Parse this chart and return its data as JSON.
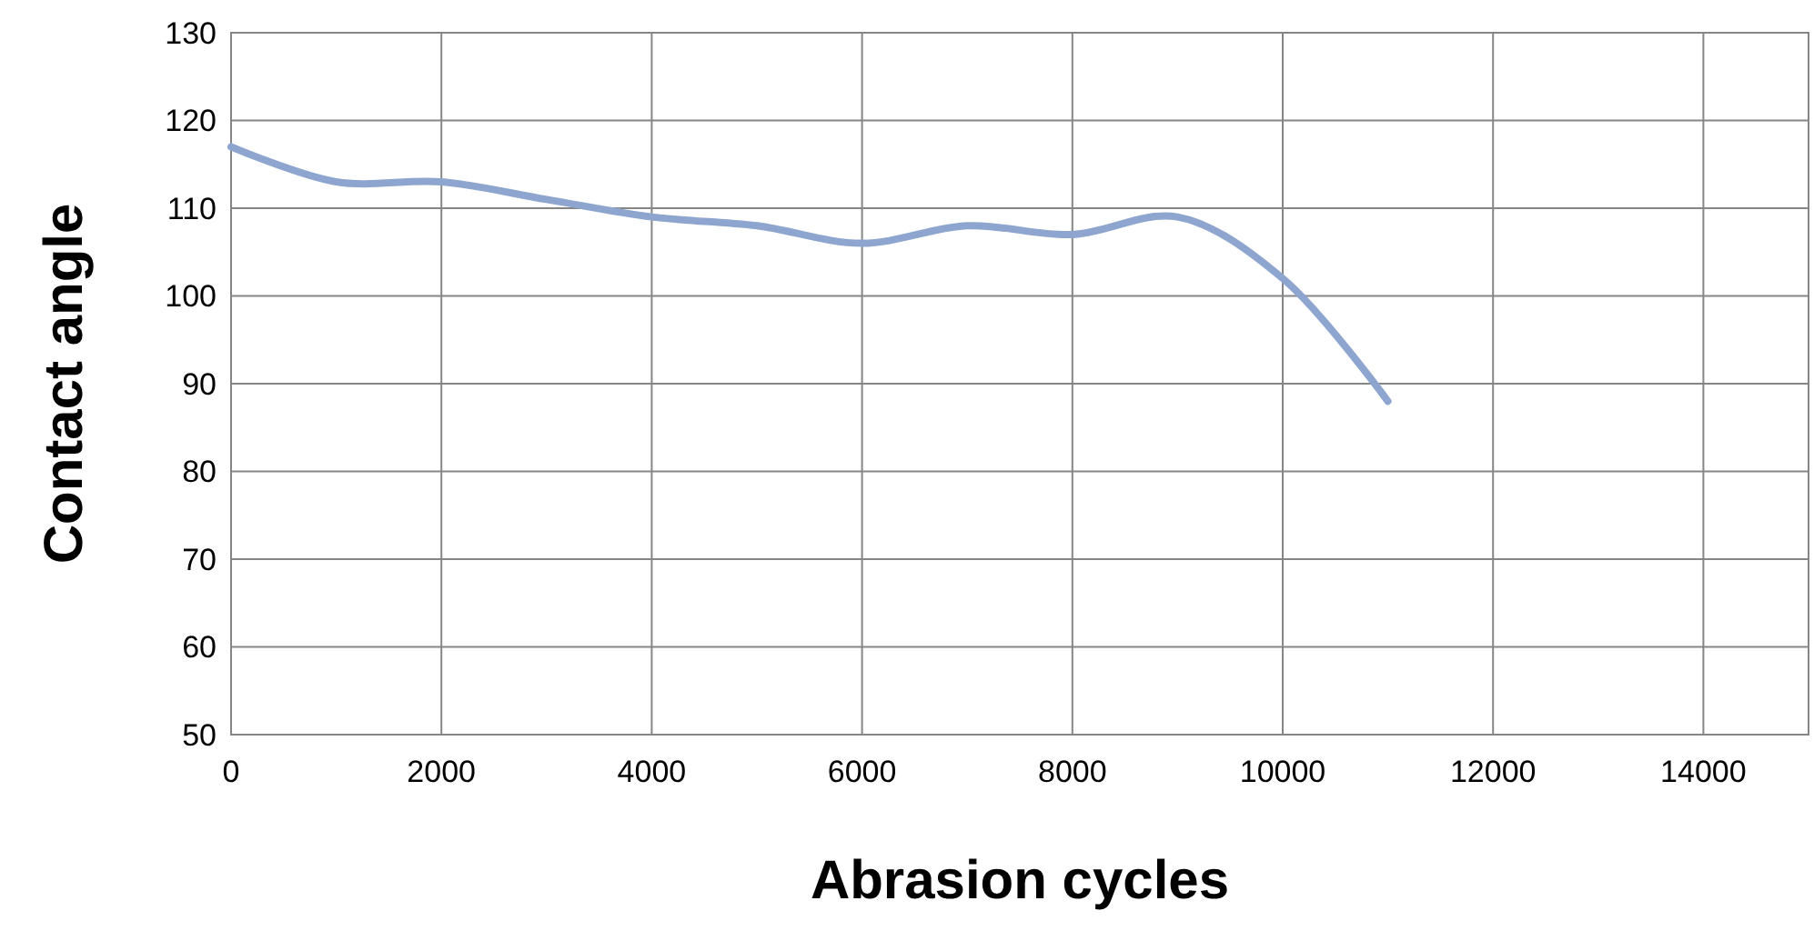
{
  "chart_data": {
    "type": "line",
    "xlabel": "Abrasion cycles",
    "ylabel": "Contact angle",
    "x": [
      0,
      1000,
      2000,
      3000,
      4000,
      5000,
      6000,
      7000,
      8000,
      9000,
      10000,
      11000
    ],
    "series": [
      {
        "color": "#8ea6cf",
        "values": [
          117,
          113,
          113,
          111,
          109,
          108,
          106,
          108,
          107,
          109,
          102,
          88
        ]
      }
    ],
    "xlim": [
      0,
      15000
    ],
    "xticks": [
      0,
      2000,
      4000,
      6000,
      8000,
      10000,
      12000,
      14000
    ],
    "ylim": [
      50,
      130
    ],
    "yticks": [
      50,
      60,
      70,
      80,
      90,
      100,
      110,
      120,
      130
    ],
    "grid": true,
    "marker": "none",
    "line_style": "solid"
  }
}
